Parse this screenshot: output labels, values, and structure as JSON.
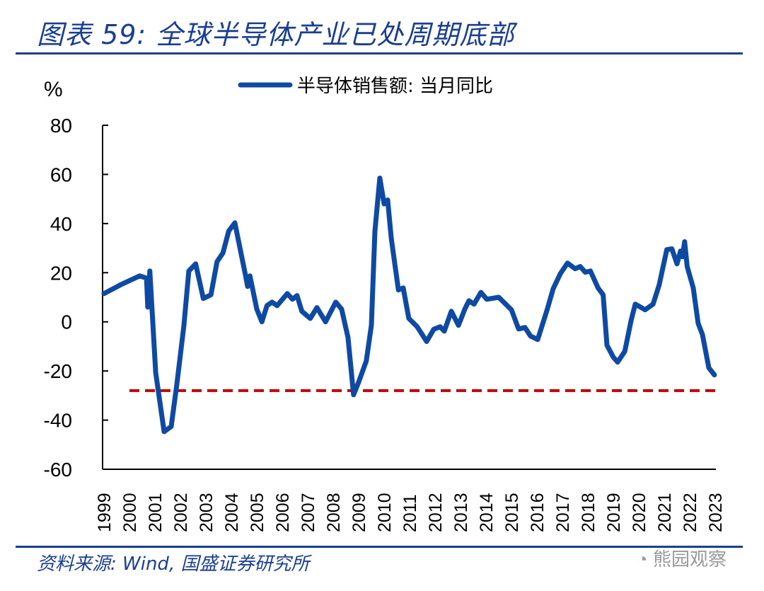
{
  "header": {
    "title": "图表 59:  全球半导体产业已处周期底部"
  },
  "footer": {
    "source": "资料来源:  Wind,  国盛证券研究所",
    "watermark": "熊园观察",
    "watermark_icon": "wechat-icon"
  },
  "chart_data": {
    "type": "line",
    "title": "",
    "ylabel": "%",
    "xlabel": "",
    "ylim": [
      -60,
      80
    ],
    "yticks": [
      "80",
      "60",
      "40",
      "20",
      "0",
      "-20",
      "-40",
      "-60"
    ],
    "xticks": [
      "1999",
      "2000",
      "2001",
      "2002",
      "2003",
      "2004",
      "2005",
      "2006",
      "2007",
      "2008",
      "2009",
      "2010",
      "2011",
      "2012",
      "2013",
      "2014",
      "2015",
      "2016",
      "2017",
      "2018",
      "2019",
      "2020",
      "2021",
      "2022",
      "2023"
    ],
    "grid": false,
    "legend": "top-center",
    "colors": {
      "series": "#0e4aa3",
      "reference": "#c00000"
    },
    "series": [
      {
        "name": "半导体销售额: 当月同比",
        "x": [
          1999.0,
          1999.64,
          2000.4,
          2000.67,
          2000.72,
          2000.8,
          2001.03,
          2001.36,
          2001.64,
          2001.86,
          2002.14,
          2002.33,
          2002.6,
          2002.9,
          2003.2,
          2003.44,
          2003.67,
          2003.9,
          2004.14,
          2004.56,
          2004.64,
          2004.73,
          2005.0,
          2005.2,
          2005.4,
          2005.6,
          2005.8,
          2006.2,
          2006.4,
          2006.58,
          2006.77,
          2007.1,
          2007.36,
          2007.7,
          2008.1,
          2008.33,
          2008.58,
          2008.8,
          2009.0,
          2009.3,
          2009.5,
          2009.64,
          2009.83,
          2010.0,
          2010.14,
          2010.28,
          2010.56,
          2010.75,
          2010.97,
          2011.3,
          2011.67,
          2011.95,
          2012.2,
          2012.36,
          2012.64,
          2012.92,
          2013.17,
          2013.33,
          2013.53,
          2013.8,
          2014.03,
          2014.5,
          2015.0,
          2015.28,
          2015.53,
          2015.75,
          2016.03,
          2016.4,
          2016.64,
          2016.92,
          2017.2,
          2017.5,
          2017.7,
          2017.9,
          2018.1,
          2018.4,
          2018.6,
          2018.75,
          2019.0,
          2019.17,
          2019.45,
          2019.7,
          2019.86,
          2020.25,
          2020.56,
          2020.8,
          2021.1,
          2021.3,
          2021.5,
          2021.64,
          2021.72,
          2021.8,
          2021.9,
          2022.14,
          2022.33,
          2022.5,
          2022.75,
          2022.97
        ],
        "values": [
          11.5,
          15,
          18.7,
          17.8,
          6,
          20.7,
          -20.7,
          -44.7,
          -42.6,
          -25.4,
          -1.4,
          20.7,
          23.6,
          9.5,
          11,
          24.5,
          28,
          37,
          40.3,
          18.7,
          14.4,
          18.7,
          5.2,
          0,
          6.6,
          8,
          6.6,
          11.5,
          9.2,
          10.7,
          4.3,
          1.4,
          5.8,
          0,
          8,
          5.2,
          -6.3,
          -29.7,
          -24.5,
          -15.9,
          -1.4,
          37,
          58.5,
          48,
          49.6,
          34,
          13,
          13.8,
          1.4,
          -2,
          -8,
          -3,
          -2,
          -3.8,
          4.3,
          -1.4,
          5.2,
          8.6,
          7.2,
          12,
          9.2,
          10,
          4.9,
          -2.9,
          -2.3,
          -5.8,
          -7.2,
          4.9,
          13.5,
          19.6,
          23.9,
          21.6,
          22.5,
          20.2,
          20.7,
          13.8,
          11,
          -9.5,
          -14.4,
          -16.4,
          -12,
          0.6,
          7.2,
          4.9,
          7.2,
          15,
          29.4,
          29.7,
          23.6,
          28.8,
          26.5,
          32.6,
          22.5,
          13.8,
          -0.6,
          -5.2,
          -18.7,
          -21.6
        ]
      }
    ],
    "reference_line": {
      "value": -28,
      "x_start": 2000.0,
      "x_end": 2023.0,
      "style": "dashed"
    }
  }
}
